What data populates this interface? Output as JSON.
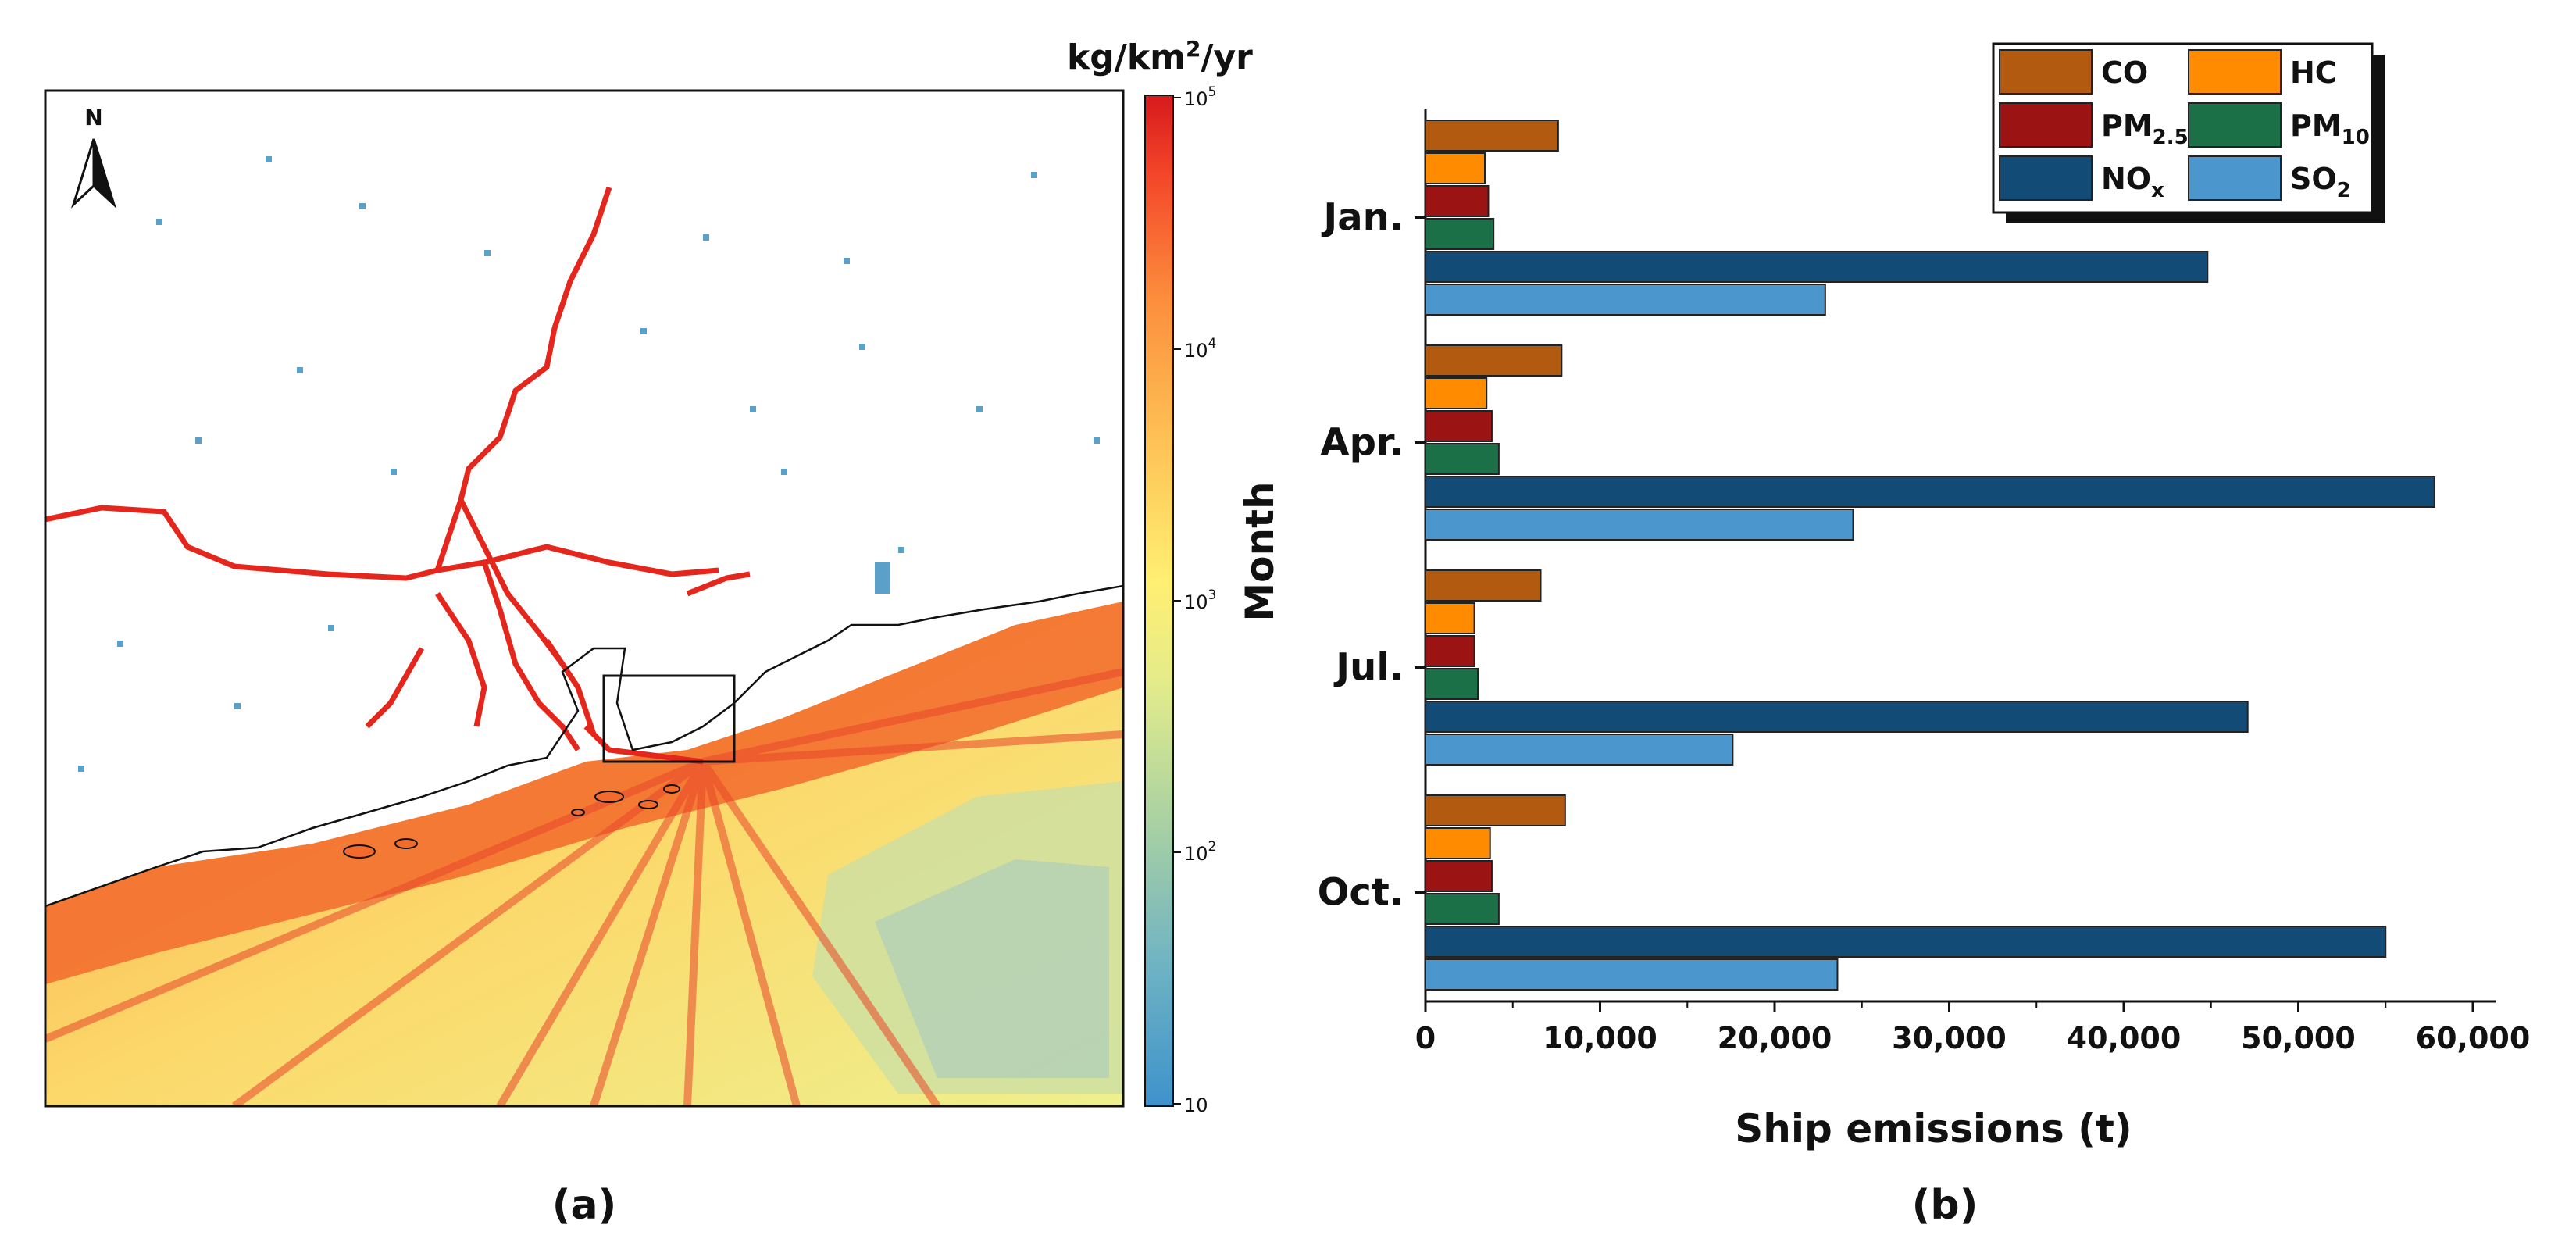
{
  "panel_a": {
    "label": "(a)",
    "north": "N",
    "colorbar": {
      "unit_prefix": "kg/km",
      "unit_exp": "2",
      "unit_suffix": "/yr",
      "ticks": [
        {
          "base": "10",
          "exp": "5",
          "value": 100000
        },
        {
          "base": "10",
          "exp": "4",
          "value": 10000
        },
        {
          "base": "10",
          "exp": "3",
          "value": 1000
        },
        {
          "base": "10",
          "exp": "2",
          "value": 100
        },
        {
          "base": "10",
          "exp": "",
          "value": 10
        }
      ],
      "colors": [
        "#d7191c",
        "#f4472a",
        "#fc8d3c",
        "#fec155",
        "#ffef72",
        "#e4ec8a",
        "#a9d1a3",
        "#6fb3c3",
        "#3e92cc"
      ]
    }
  },
  "panel_b": {
    "label": "(b)"
  },
  "chart_data": {
    "type": "bar",
    "orientation": "horizontal",
    "categories": [
      "Jan.",
      "Apr.",
      "Jul.",
      "Oct."
    ],
    "xlabel": "Ship emissions (t)",
    "ylabel": "Month",
    "xlim": [
      0,
      60000
    ],
    "xticks": [
      "0",
      "10,000",
      "20,000",
      "30,000",
      "40,000",
      "50,000",
      "60,000"
    ],
    "legend_position": "top-right",
    "series": [
      {
        "name": "CO",
        "sub": "",
        "color": "#b35a11",
        "values": [
          7600,
          7800,
          6600,
          8000
        ]
      },
      {
        "name": "HC",
        "sub": "",
        "color": "#ff8c00",
        "values": [
          3400,
          3500,
          2800,
          3700
        ]
      },
      {
        "name": "PM",
        "sub": "2.5",
        "color": "#9c1313",
        "values": [
          3600,
          3800,
          2800,
          3800
        ]
      },
      {
        "name": "PM",
        "sub": "10",
        "color": "#1c7048",
        "values": [
          3900,
          4200,
          3000,
          4200
        ]
      },
      {
        "name": "NO",
        "sub": "x",
        "color": "#134b77",
        "values": [
          44800,
          57800,
          47100,
          55000
        ]
      },
      {
        "name": "SO",
        "sub": "2",
        "color": "#4a96cd",
        "values": [
          22900,
          24500,
          17600,
          23600
        ]
      }
    ]
  }
}
